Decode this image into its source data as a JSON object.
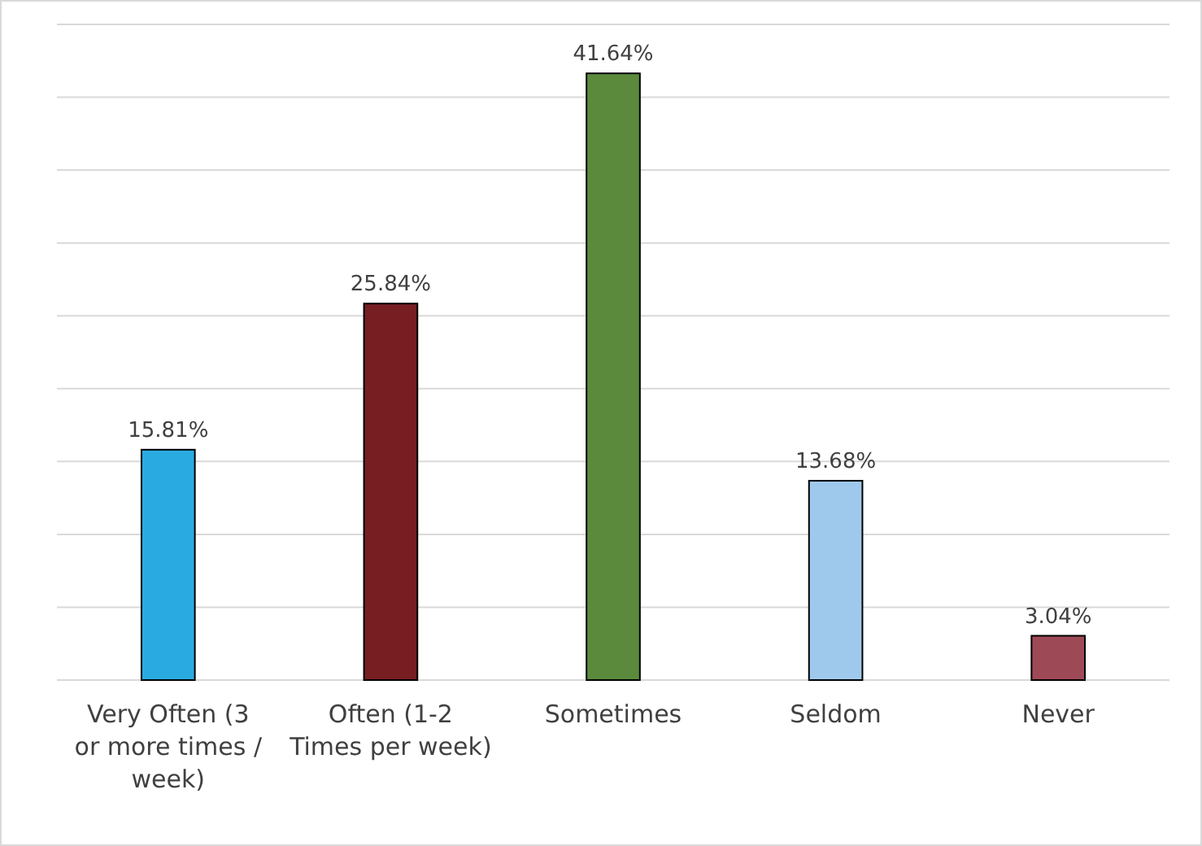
{
  "chart_data": {
    "type": "bar",
    "categories": [
      "Very Often (3 or more times / week)",
      "Often (1-2 Times per week)",
      "Sometimes",
      "Seldom",
      "Never"
    ],
    "values": [
      15.81,
      25.84,
      41.64,
      13.68,
      3.04
    ],
    "colors": [
      "#29abe2",
      "#771e22",
      "#5b8a3c",
      "#9fc9ec",
      "#9e4a56"
    ],
    "value_labels": [
      "15.81%",
      "25.84%",
      "41.64%",
      "13.68%",
      "3.04%"
    ],
    "ylim": [
      0,
      45
    ],
    "yticks": [
      {
        "value": 0,
        "label": null
      },
      {
        "value": 5,
        "label": null
      },
      {
        "value": 10,
        "label": null
      },
      {
        "value": 15,
        "label": null
      },
      {
        "value": 20,
        "label": null
      },
      {
        "value": 25,
        "label": null
      },
      {
        "value": 30,
        "label": null
      },
      {
        "value": 35,
        "label": null
      },
      {
        "value": 40,
        "label": null
      },
      {
        "value": 45,
        "label": null
      }
    ],
    "grid": "y",
    "tick_labels": "x"
  }
}
